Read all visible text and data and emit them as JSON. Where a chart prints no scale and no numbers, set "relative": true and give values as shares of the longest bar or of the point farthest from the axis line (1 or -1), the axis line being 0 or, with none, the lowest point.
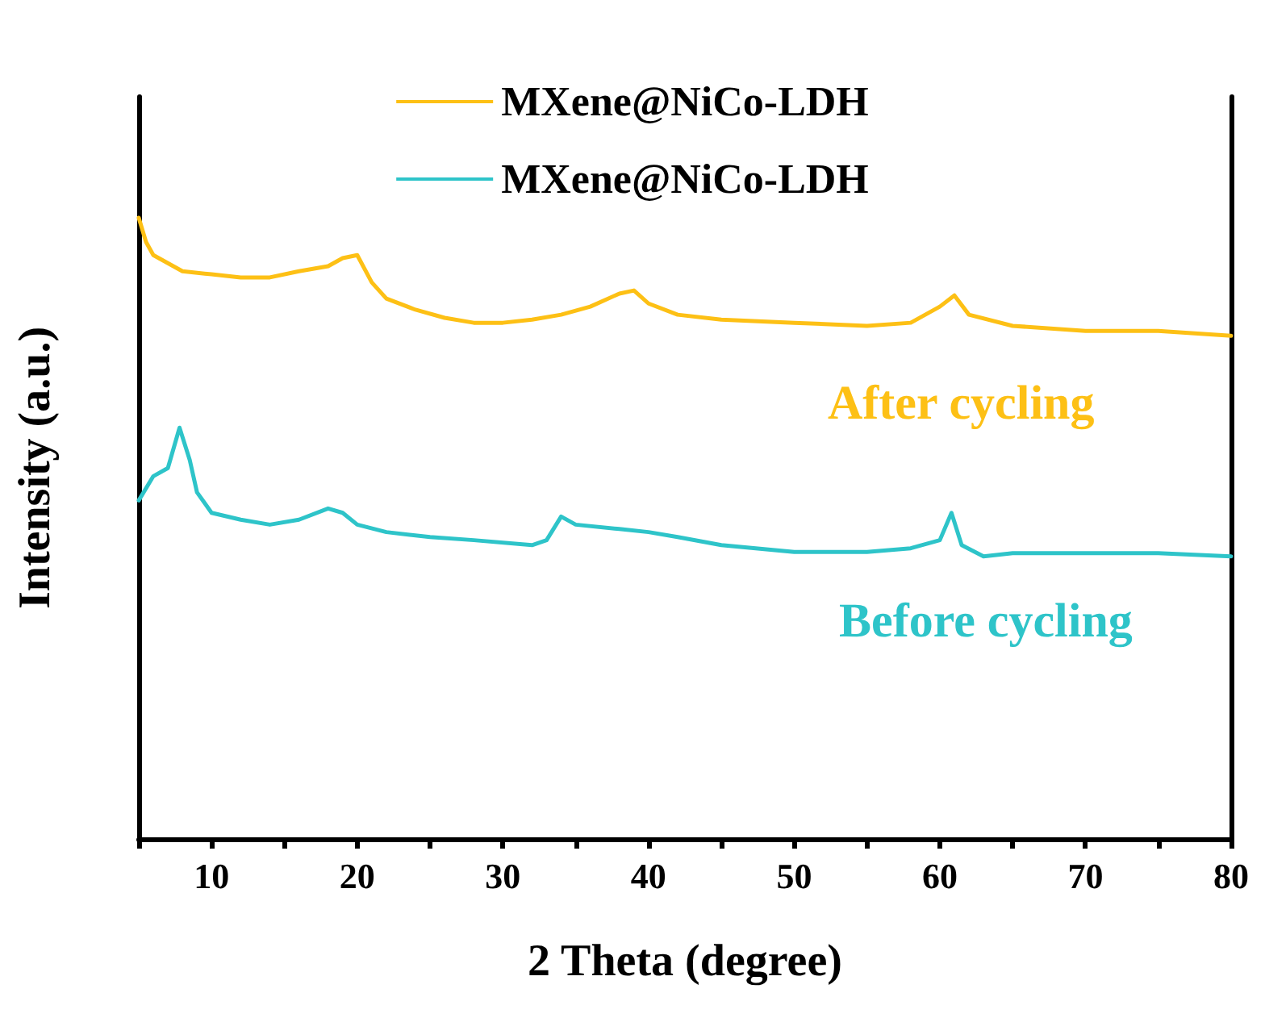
{
  "chart_data": {
    "type": "line",
    "relative": true,
    "xlabel": "2 Theta (degree)",
    "ylabel": "Intensity (a.u.)",
    "xlim": [
      5,
      80
    ],
    "xticks": [
      {
        "value": 5,
        "label": null
      },
      10,
      {
        "value": 15,
        "label": null
      },
      20,
      {
        "value": 25,
        "label": null
      },
      30,
      {
        "value": 35,
        "label": null
      },
      40,
      {
        "value": 45,
        "label": null
      },
      50,
      {
        "value": 55,
        "label": null
      },
      60,
      {
        "value": 65,
        "label": null
      },
      70,
      {
        "value": 75,
        "label": null
      },
      80
    ],
    "legend": "top",
    "grid": false,
    "marker": "none",
    "line_style": "solid",
    "annotations": [
      "After cycling",
      "Before cycling"
    ],
    "series": [
      {
        "name": "MXene@NiCo-LDH",
        "color": "#fdc015",
        "x": [
          5,
          5.5,
          6,
          8,
          10,
          12,
          14,
          16,
          18,
          19,
          20,
          21,
          22,
          24,
          26,
          28,
          30,
          32,
          34,
          36,
          38,
          39,
          40,
          42,
          45,
          50,
          55,
          58,
          60,
          61,
          62,
          65,
          70,
          75,
          80
        ],
        "values": [
          1.0,
          0.961,
          0.94,
          0.914,
          0.909,
          0.904,
          0.904,
          0.914,
          0.922,
          0.935,
          0.94,
          0.896,
          0.87,
          0.852,
          0.839,
          0.831,
          0.831,
          0.836,
          0.844,
          0.857,
          0.878,
          0.883,
          0.862,
          0.844,
          0.836,
          0.831,
          0.826,
          0.831,
          0.857,
          0.875,
          0.844,
          0.826,
          0.818,
          0.818,
          0.81
        ]
      },
      {
        "name": "MXene@NiCo-LDH",
        "color": "#2ec4c9",
        "x": [
          5,
          6,
          7,
          7.8,
          8.5,
          9,
          10,
          12,
          14,
          16,
          18,
          19,
          20,
          22,
          25,
          28,
          32,
          33,
          34,
          35,
          38,
          40,
          42,
          45,
          50,
          55,
          58,
          60,
          60.8,
          61.5,
          63,
          65,
          70,
          75,
          80
        ],
        "values": [
          0.545,
          0.584,
          0.597,
          0.662,
          0.61,
          0.558,
          0.525,
          0.514,
          0.506,
          0.514,
          0.532,
          0.525,
          0.506,
          0.494,
          0.486,
          0.481,
          0.473,
          0.481,
          0.519,
          0.506,
          0.499,
          0.494,
          0.486,
          0.473,
          0.462,
          0.462,
          0.468,
          0.481,
          0.525,
          0.473,
          0.455,
          0.46,
          0.46,
          0.46,
          0.455
        ]
      }
    ]
  }
}
